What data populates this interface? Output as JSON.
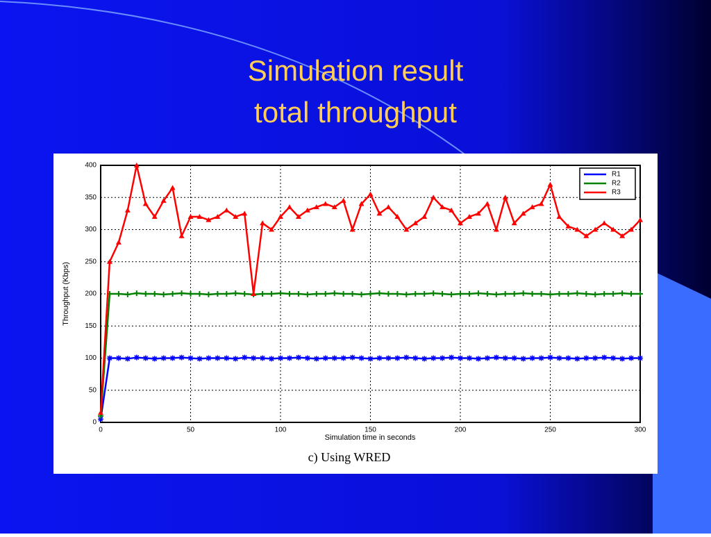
{
  "chart_data": {
    "type": "line",
    "title": "Simulation result",
    "subtitle": "total throughput",
    "caption": "c) Using WRED",
    "x_label": "Simulation time in seconds",
    "y_label": "Throughput (Kbps)",
    "x": [
      0,
      5,
      10,
      15,
      20,
      25,
      30,
      35,
      40,
      45,
      50,
      55,
      60,
      65,
      70,
      75,
      80,
      85,
      90,
      95,
      100,
      105,
      110,
      115,
      120,
      125,
      130,
      135,
      140,
      145,
      150,
      155,
      160,
      165,
      170,
      175,
      180,
      185,
      190,
      195,
      200,
      205,
      210,
      215,
      220,
      225,
      230,
      235,
      240,
      245,
      250,
      255,
      260,
      265,
      270,
      275,
      280,
      285,
      290,
      295,
      300
    ],
    "series": [
      {
        "name": "R1",
        "color": "#0000ff",
        "values": [
          5,
          100,
          100,
          99,
          101,
          100,
          99,
          100,
          100,
          101,
          100,
          99,
          100,
          100,
          100,
          99,
          101,
          100,
          100,
          99,
          100,
          100,
          101,
          100,
          99,
          100,
          100,
          100,
          101,
          100,
          99,
          100,
          100,
          100,
          101,
          100,
          99,
          100,
          100,
          101,
          100,
          100,
          99,
          100,
          101,
          100,
          100,
          99,
          100,
          100,
          101,
          100,
          100,
          99,
          100,
          100,
          101,
          100,
          99,
          100,
          100
        ]
      },
      {
        "name": "R2",
        "color": "#008000",
        "values": [
          10,
          200,
          200,
          199,
          201,
          200,
          200,
          199,
          200,
          201,
          200,
          200,
          199,
          200,
          200,
          201,
          200,
          199,
          200,
          200,
          201,
          200,
          200,
          199,
          200,
          200,
          201,
          200,
          200,
          199,
          200,
          201,
          200,
          200,
          199,
          200,
          200,
          201,
          200,
          199,
          200,
          200,
          201,
          200,
          199,
          200,
          200,
          201,
          200,
          200,
          199,
          200,
          200,
          201,
          200,
          199,
          200,
          200,
          201,
          200,
          200
        ]
      },
      {
        "name": "R3",
        "color": "#ff0000",
        "values": [
          15,
          250,
          280,
          330,
          400,
          340,
          320,
          345,
          365,
          290,
          320,
          320,
          315,
          320,
          330,
          320,
          325,
          200,
          310,
          300,
          320,
          335,
          320,
          330,
          335,
          340,
          335,
          345,
          300,
          340,
          355,
          325,
          335,
          320,
          300,
          310,
          320,
          350,
          335,
          330,
          310,
          320,
          325,
          340,
          300,
          350,
          310,
          325,
          335,
          340,
          370,
          320,
          305,
          300,
          290,
          300,
          310,
          300,
          290,
          300,
          315
        ]
      }
    ],
    "xlim": [
      0,
      300
    ],
    "xticks": [
      0,
      50,
      100,
      150,
      200,
      250,
      300
    ],
    "ylim": [
      0,
      400
    ],
    "yticks": [
      0,
      50,
      100,
      150,
      200,
      250,
      300,
      350,
      400
    ],
    "grid": true,
    "legend": "upper right"
  }
}
